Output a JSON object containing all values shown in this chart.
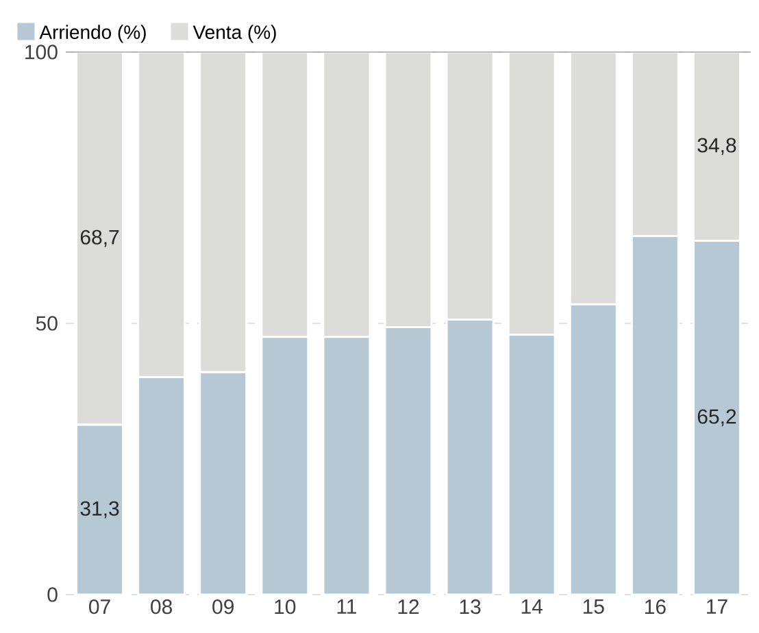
{
  "chart_data": {
    "type": "bar",
    "stacked": true,
    "categories": [
      "07",
      "08",
      "09",
      "10",
      "11",
      "12",
      "13",
      "14",
      "15",
      "16",
      "17"
    ],
    "series": [
      {
        "name": "Arriendo (%)",
        "color": "#b5c8d4",
        "values": [
          31.3,
          40.1,
          41.0,
          47.5,
          47.5,
          49.3,
          50.7,
          47.9,
          53.5,
          66.1,
          65.2
        ],
        "value_labels": [
          "31,3",
          null,
          null,
          null,
          null,
          null,
          null,
          null,
          null,
          null,
          "65,2"
        ]
      },
      {
        "name": "Venta (%)",
        "color": "#dcdcda",
        "values": [
          68.7,
          59.9,
          59.0,
          52.5,
          52.5,
          50.7,
          49.3,
          52.1,
          46.5,
          33.9,
          34.8
        ],
        "value_labels": [
          "68,7",
          null,
          null,
          null,
          null,
          null,
          null,
          null,
          null,
          null,
          "34,8"
        ]
      }
    ],
    "ylim": [
      0,
      100
    ],
    "yticks": [
      0,
      50,
      100
    ],
    "grid": "y",
    "legend": "top left"
  }
}
